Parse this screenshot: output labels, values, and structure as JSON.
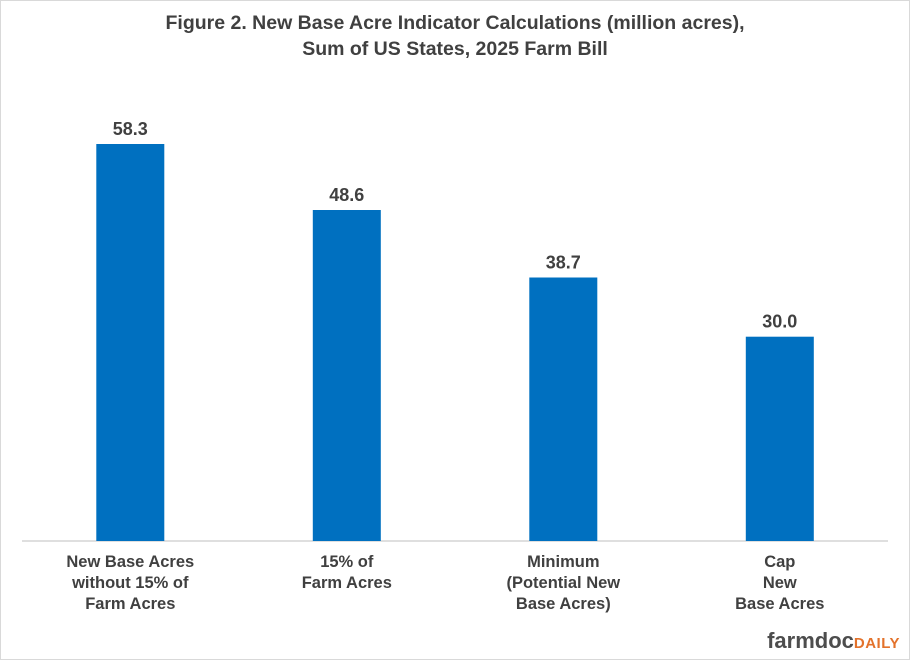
{
  "chart_data": {
    "type": "bar",
    "title": [
      "Figure  2.  New Base Acre Indicator Calculations (million acres),",
      "Sum of US States, 2025 Farm Bill"
    ],
    "categories": [
      [
        "New Base Acres",
        "without 15% of",
        "Farm Acres"
      ],
      [
        "15% of",
        "Farm Acres"
      ],
      [
        "Minimum",
        "(Potential New",
        "Base Acres)"
      ],
      [
        "Cap",
        "New",
        "Base Acres"
      ]
    ],
    "values": [
      58.3,
      48.6,
      38.7,
      30.0
    ],
    "data_labels": [
      "58.3",
      "48.6",
      "38.7",
      "30.0"
    ],
    "ylim": [
      0,
      65
    ],
    "grid": false,
    "xlabel": "",
    "ylabel": "",
    "bar_color": "#0070c0"
  },
  "logo": {
    "farmdoc": "farmdoc",
    "daily": "DAILY"
  },
  "colors": {
    "text": "#404040",
    "axis": "#bfbfbf"
  }
}
